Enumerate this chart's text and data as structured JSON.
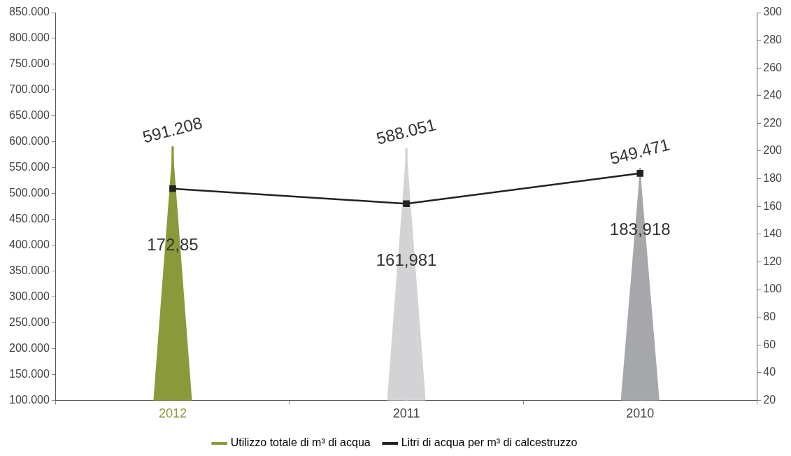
{
  "chart_data": {
    "type": "bar",
    "categories": [
      "2012",
      "2011",
      "2010"
    ],
    "series": [
      {
        "name": "Utilizzo totale di m³ di acqua",
        "colors": [
          "#8a9a3a",
          "#d3d3d5",
          "#a6a7aa"
        ],
        "values": [
          591208,
          588051,
          549471
        ],
        "value_labels": [
          "591.208",
          "588.051",
          "549.471"
        ]
      },
      {
        "type": "line",
        "name": "Litri di acqua per m³ di calcestruzzo",
        "color": "#222222",
        "axis": "y2",
        "marker": "square",
        "values": [
          172.85,
          161.981,
          183.918
        ],
        "value_labels": [
          "172,85",
          "161,981",
          "183,918"
        ]
      }
    ],
    "ylim": [
      100000,
      850000
    ],
    "yticks": [
      {
        "value": 100000,
        "label": "100.000"
      },
      {
        "value": 150000,
        "label": "150.000"
      },
      {
        "value": 200000,
        "label": "200.000"
      },
      {
        "value": 250000,
        "label": "250.000"
      },
      {
        "value": 300000,
        "label": "300.000"
      },
      {
        "value": 350000,
        "label": "350.000"
      },
      {
        "value": 400000,
        "label": "400.000"
      },
      {
        "value": 450000,
        "label": "450.000"
      },
      {
        "value": 500000,
        "label": "500.000"
      },
      {
        "value": 550000,
        "label": "550.000"
      },
      {
        "value": 600000,
        "label": "600.000"
      },
      {
        "value": 650000,
        "label": "650.000"
      },
      {
        "value": 700000,
        "label": "700.000"
      },
      {
        "value": 750000,
        "label": "750.000"
      },
      {
        "value": 800000,
        "label": "800.000"
      },
      {
        "value": 850000,
        "label": "850.000"
      }
    ],
    "y2lim": [
      20,
      300
    ],
    "y2ticks": [
      20,
      40,
      60,
      80,
      100,
      120,
      140,
      160,
      180,
      200,
      220,
      240,
      260,
      280,
      300
    ],
    "grid": false,
    "legend": "bottom"
  }
}
